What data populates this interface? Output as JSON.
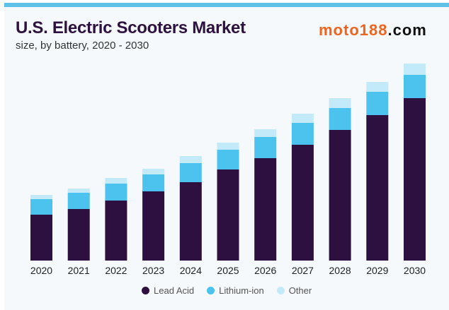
{
  "chart_data": {
    "type": "bar",
    "stacked": true,
    "title": "U.S. Electric Scooters Market",
    "subtitle": "size, by battery, 2020 - 2030",
    "xlabel": "",
    "ylabel": "",
    "categories": [
      "2020",
      "2021",
      "2022",
      "2023",
      "2024",
      "2025",
      "2026",
      "2027",
      "2028",
      "2029",
      "2030"
    ],
    "series": [
      {
        "name": "Lead Acid",
        "color": "#2e1040",
        "values": [
          65,
          73,
          85,
          98,
          111,
          129,
          145,
          164,
          185,
          206,
          230
        ]
      },
      {
        "name": "Lithium-ion",
        "color": "#4cc3ee",
        "values": [
          22,
          23,
          24,
          24,
          27,
          28,
          30,
          31,
          31,
          33,
          33
        ]
      },
      {
        "name": "Other",
        "color": "#c2eaf8",
        "values": [
          6,
          6,
          8,
          8,
          10,
          10,
          11,
          13,
          14,
          14,
          16
        ]
      }
    ],
    "ylim": [
      0,
      285
    ],
    "grid": false,
    "legend_position": "bottom"
  },
  "watermark": {
    "part1": "moto188",
    "part2": ".com"
  }
}
